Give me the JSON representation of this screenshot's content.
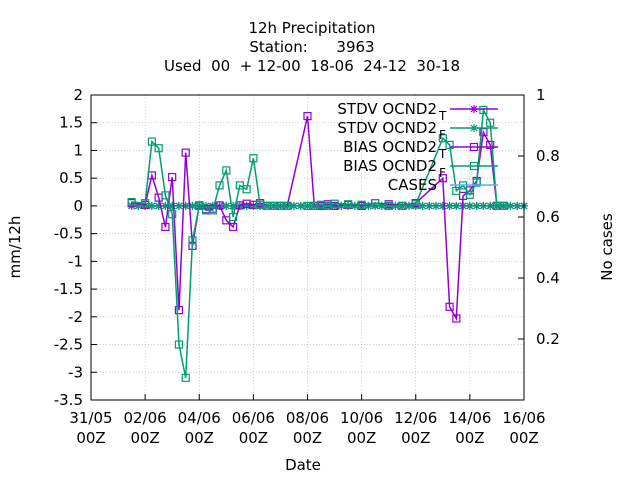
{
  "chart_data": {
    "type": "line",
    "title_lines": [
      "12h Precipitation",
      "Station:      3963",
      "Used  00  + 12-00  18-06  24-12  30-18"
    ],
    "xlabel": "Date",
    "ylabel": "mm/12h",
    "y2label": "No cases",
    "ylim": [
      -3.5,
      2
    ],
    "y2lim": [
      0,
      1
    ],
    "grid": true,
    "legend_position": "top-right",
    "x_ticks": [
      {
        "x": -2,
        "line1": "31/05",
        "line2": "00Z"
      },
      {
        "x": 0,
        "line1": "02/06",
        "line2": "00Z"
      },
      {
        "x": 2,
        "line1": "04/06",
        "line2": "00Z"
      },
      {
        "x": 4,
        "line1": "06/06",
        "line2": "00Z"
      },
      {
        "x": 6,
        "line1": "08/06",
        "line2": "00Z"
      },
      {
        "x": 8,
        "line1": "10/06",
        "line2": "00Z"
      },
      {
        "x": 10,
        "line1": "12/06",
        "line2": "00Z"
      },
      {
        "x": 12,
        "line1": "14/06",
        "line2": "00Z"
      },
      {
        "x": 14,
        "line1": "16/06",
        "line2": "00Z"
      }
    ],
    "y_ticks": [
      "2",
      "1.5",
      "1",
      "0.5",
      "0",
      "-0.5",
      "-1",
      "-1.5",
      "-2",
      "-2.5",
      "-3",
      "-3.5"
    ],
    "y2_ticks": [
      "1",
      "0.8",
      "0.6",
      "0.4",
      "0.2"
    ],
    "series": [
      {
        "name": "STDV OCND2",
        "subscript": "T",
        "color": "#9400d3",
        "marker": "star",
        "x": [
          -0.5,
          -0.25,
          0,
          0.25,
          0.5,
          0.75,
          1,
          1.25,
          1.5,
          1.75,
          2,
          2.25,
          2.5,
          2.75,
          3,
          3.25,
          3.5,
          3.75,
          4,
          4.25,
          4.5,
          4.75,
          5,
          5.25,
          5.5,
          5.75,
          6,
          6.25,
          6.5,
          6.75,
          7,
          7.25,
          7.5,
          7.75,
          8,
          8.25,
          8.5,
          8.75,
          9,
          9.25,
          9.5,
          9.75,
          10,
          10.25,
          10.5,
          10.75,
          11,
          11.25,
          11.5,
          11.75,
          12,
          12.25,
          12.5,
          12.75,
          13,
          13.25,
          13.5,
          13.75,
          14
        ],
        "values": [
          0,
          0,
          0,
          0,
          0,
          0,
          0,
          0,
          0,
          0,
          0,
          0,
          0,
          0,
          0,
          0,
          0,
          0,
          0,
          0,
          0,
          0,
          0,
          0,
          0,
          0,
          0,
          0,
          0,
          0,
          0,
          0,
          0,
          0,
          0,
          0,
          0,
          0,
          0,
          0,
          0,
          0,
          0,
          0,
          0,
          0,
          0,
          0,
          0,
          0,
          0,
          0,
          0,
          0,
          0,
          0,
          0,
          0,
          0
        ]
      },
      {
        "name": "STDV OCND2",
        "subscript": "F",
        "color": "#009e73",
        "marker": "star",
        "x": [
          -0.5,
          -0.25,
          0,
          0.25,
          0.5,
          0.75,
          1,
          1.25,
          1.5,
          1.75,
          2,
          2.25,
          2.5,
          2.75,
          3,
          3.25,
          3.5,
          3.75,
          4,
          4.25,
          4.5,
          4.75,
          5,
          5.25,
          5.5,
          5.75,
          6,
          6.25,
          6.5,
          6.75,
          7,
          7.25,
          7.5,
          7.75,
          8,
          8.25,
          8.5,
          8.75,
          9,
          9.25,
          9.5,
          9.75,
          10,
          10.25,
          10.5,
          10.75,
          11,
          11.25,
          11.5,
          11.75,
          12,
          12.25,
          12.5,
          12.75,
          13,
          13.25,
          13.5,
          13.75,
          14
        ],
        "values": [
          0,
          0,
          0,
          0,
          0,
          0,
          0,
          0,
          0,
          0,
          0,
          0,
          0,
          0,
          0,
          0,
          0,
          0,
          0,
          0,
          0,
          0,
          0,
          0,
          0,
          0,
          0,
          0,
          0,
          0,
          0,
          0,
          0,
          0,
          0,
          0,
          0,
          0,
          0,
          0,
          0,
          0,
          0,
          0,
          0,
          0,
          0,
          0,
          0,
          0,
          0,
          0,
          0,
          0,
          0,
          0,
          0,
          0,
          0
        ]
      },
      {
        "name": "BIAS OCND2",
        "subscript": "T",
        "color": "#9400d3",
        "marker": "square",
        "x": [
          -0.5,
          0,
          0.25,
          0.5,
          0.75,
          1,
          1.25,
          1.5,
          1.75,
          2,
          2.25,
          2.5,
          2.75,
          3,
          3.25,
          3.5,
          3.75,
          4,
          4.25,
          4.5,
          4.75,
          5,
          5.25,
          6,
          6.25,
          6.5,
          6.75,
          7,
          7.5,
          8,
          8.5,
          9,
          9.5,
          10,
          11,
          11.25,
          11.5,
          11.75,
          12,
          12.25,
          12.5,
          12.75,
          13,
          13.25
        ],
        "values": [
          0.05,
          0.02,
          0.55,
          0.15,
          -0.38,
          0.52,
          -1.88,
          0.96,
          -0.72,
          0.01,
          -0.06,
          -0.05,
          0.01,
          -0.26,
          -0.38,
          0.01,
          0.04,
          0.02,
          0.05,
          0,
          0,
          0,
          0,
          1.62,
          0,
          0,
          0.03,
          0,
          0.02,
          0,
          0.05,
          0.03,
          0,
          0.05,
          0.5,
          -1.82,
          -2.03,
          0.18,
          0.28,
          0.45,
          1.33,
          1.1,
          0,
          0
        ]
      },
      {
        "name": "BIAS OCND2",
        "subscript": "F",
        "color": "#009e73",
        "marker": "square",
        "x": [
          -0.5,
          0,
          0.25,
          0.5,
          0.75,
          1,
          1.25,
          1.5,
          1.75,
          2,
          2.25,
          2.5,
          2.75,
          3,
          3.25,
          3.5,
          3.75,
          4,
          4.25,
          4.5,
          4.75,
          5,
          5.25,
          6,
          6.25,
          6.5,
          6.75,
          7,
          7.5,
          8,
          8.5,
          9,
          9.5,
          10,
          11,
          11.25,
          11.5,
          11.75,
          12,
          12.25,
          12.5,
          12.75,
          13,
          13.25
        ],
        "values": [
          0.07,
          0.05,
          1.16,
          1.04,
          0.19,
          -0.15,
          -2.5,
          -3.1,
          -0.62,
          0,
          -0.08,
          -0.08,
          0.37,
          0.64,
          -0.2,
          0.37,
          0.3,
          0.86,
          0.02,
          0,
          0,
          0,
          0,
          0,
          0,
          0.02,
          0,
          0.04,
          0.03,
          0.02,
          0.05,
          0,
          0,
          0.03,
          1.22,
          1.1,
          0.27,
          0.37,
          0.2,
          0.42,
          1.73,
          1.5,
          0,
          0
        ]
      },
      {
        "name": "CASES",
        "subscript": "",
        "color": "#56b4e9",
        "marker": "none",
        "x": [],
        "values": []
      }
    ]
  }
}
